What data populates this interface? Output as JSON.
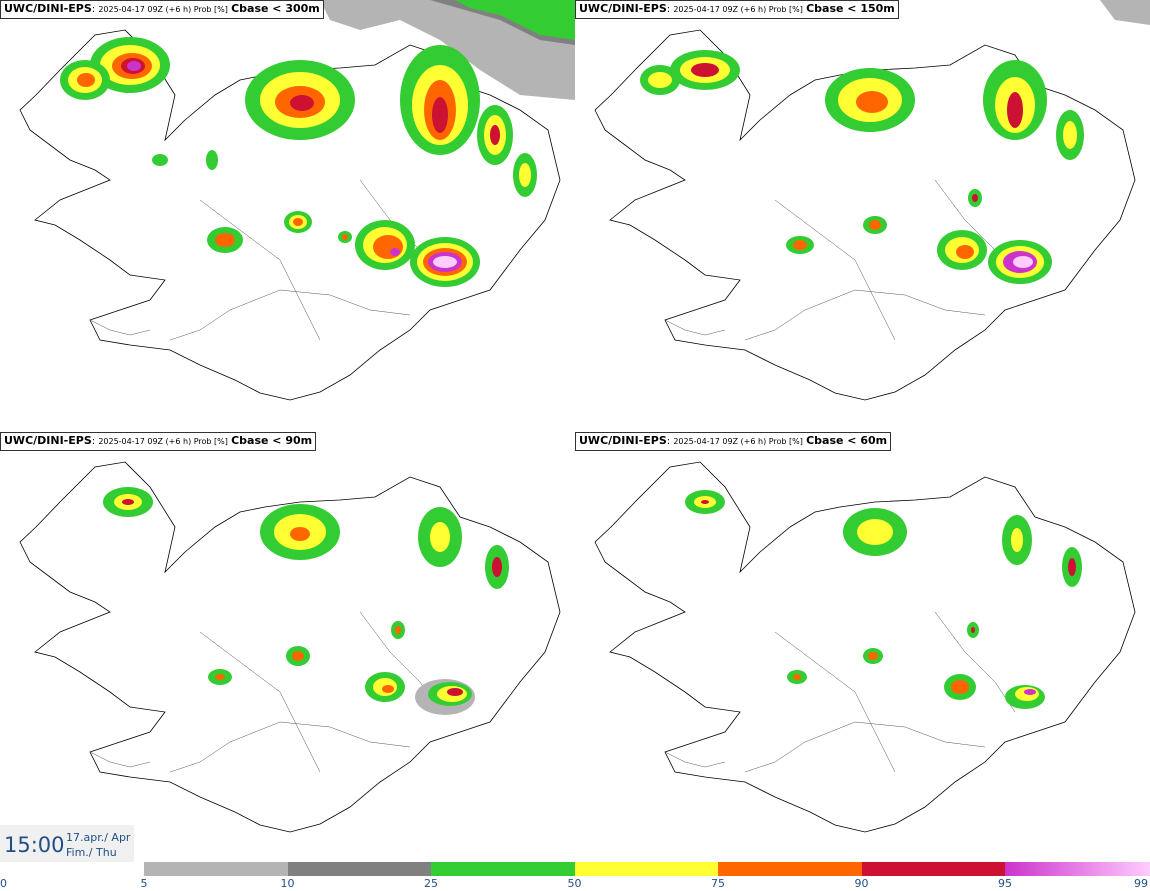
{
  "panels": [
    {
      "model": "UWC/DINI-EPS",
      "info": "2025-04-17 09Z (+6 h) Prob [%]",
      "threshold": "Cbase < 300m"
    },
    {
      "model": "UWC/DINI-EPS",
      "info": "2025-04-17 09Z (+6 h) Prob [%]",
      "threshold": "Cbase < 150m"
    },
    {
      "model": "UWC/DINI-EPS",
      "info": "2025-04-17 09Z (+6 h) Prob [%]",
      "threshold": "Cbase < 90m"
    },
    {
      "model": "UWC/DINI-EPS",
      "info": "2025-04-17 09Z (+6 h) Prob [%]",
      "threshold": "Cbase < 60m"
    }
  ],
  "time": {
    "hour": "15:00",
    "date": "17.apr./ Apr",
    "weekday": "Fim./ Thu"
  },
  "legend": {
    "ticks": [
      "0",
      "5",
      "10",
      "25",
      "50",
      "75",
      "90",
      "95",
      "99"
    ],
    "colors": [
      "#ffffff",
      "#b4b4b4",
      "#808080",
      "#33cc33",
      "#ffff33",
      "#ff6600",
      "#cc1133",
      "#cc33cc",
      "#ffccff"
    ]
  }
}
